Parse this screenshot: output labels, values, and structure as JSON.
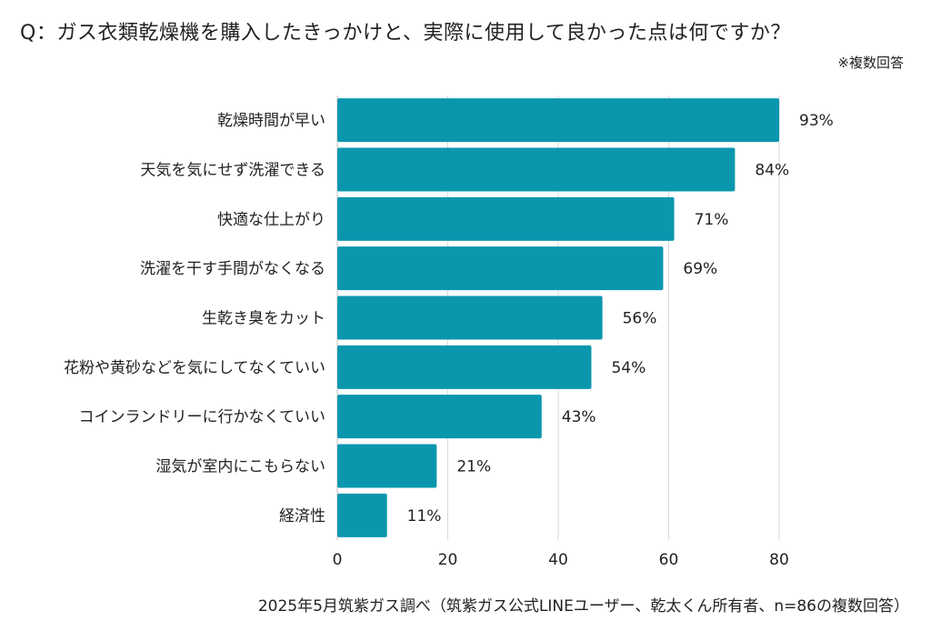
{
  "title": "Q：ガス衣類乾燥機を購入したきっかけと、実際に使用して良かった点は何ですか？",
  "note": "※複数回答",
  "footer": "2025年5月筑紫ガス調べ（筑紫ガス公式LINEユーザー、乾太くん所有者、n=86の複数回答）",
  "colors": {
    "bar": "#0a97ae",
    "grid": "#d9d9d9"
  },
  "chart_data": {
    "type": "bar",
    "orientation": "horizontal",
    "categories": [
      "乾燥時間が早い",
      "天気を気にせず洗濯できる",
      "快適な仕上がり",
      "洗濯を干す手間がなくなる",
      "生乾き臭をカット",
      "花粉や黄砂などを気にしてなくていい",
      "コインランドリーに行かなくていい",
      "湿気が室内にこもらない",
      "経済性"
    ],
    "values": [
      80,
      72,
      61,
      59,
      48,
      46,
      37,
      18,
      9
    ],
    "data_labels": [
      "93%",
      "84%",
      "71%",
      "69%",
      "56%",
      "54%",
      "43%",
      "21%",
      "11%"
    ],
    "xlim": [
      0,
      80
    ],
    "xticks": [
      0,
      20,
      40,
      60,
      80
    ],
    "grid": true
  }
}
